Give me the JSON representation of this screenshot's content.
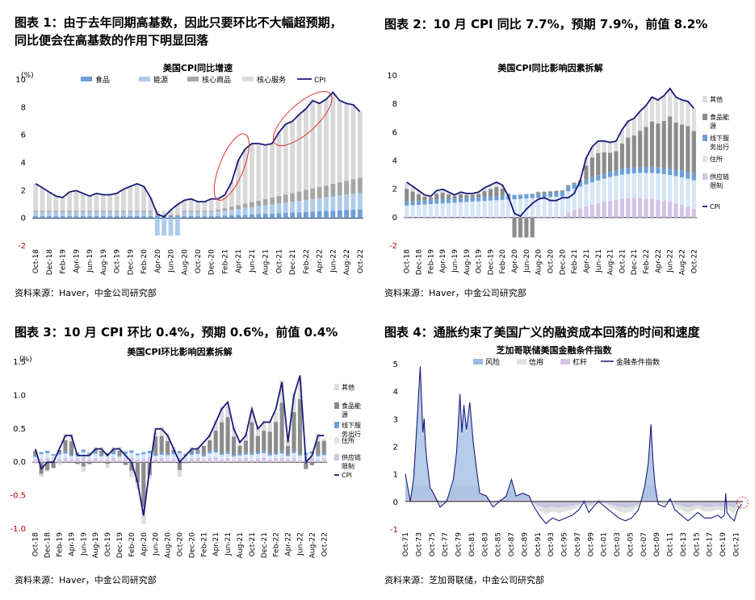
{
  "panels": [
    {
      "title_lines": [
        "图表 1：由于去年同期高基数，因此只要环比不大幅超预期，",
        "同比便会在高基数的作用下明显回落"
      ],
      "source": "资料来源：Haver，中金公司研究部"
    },
    {
      "title_lines": [
        "图表 2：10 月 CPI 同比 7.7%，预期 7.9%，前值 8.2%"
      ],
      "source": "资料来源：Haver，中金公司研究部"
    },
    {
      "title_lines": [
        "图表 3：10 月 CPI 环比 0.4%，预期 0.6%，前值 0.4%"
      ],
      "source": "资料来源：Haver，中金公司研究部"
    },
    {
      "title_lines": [
        "图表 4：通胀约束了美国广义的融资成本回落的时间和速度"
      ],
      "source": "资料来源：芝加哥联储，中金公司研究部"
    }
  ],
  "chart_data": [
    {
      "type": "bar",
      "title": "美国CPI同比增速",
      "ylabel": "(%)",
      "ylim": [
        -2,
        10
      ],
      "yticks": [
        -2,
        0,
        2,
        4,
        6,
        8,
        10
      ],
      "start": {
        "year": 2018,
        "month": 10
      },
      "n": 49,
      "xticks": [
        "Oct-18",
        "Dec-18",
        "Feb-19",
        "Apr-19",
        "Jun-19",
        "Aug-19",
        "Oct-19",
        "Dec-19",
        "Feb-20",
        "Apr-20",
        "Jun-20",
        "Aug-20",
        "Oct-20",
        "Dec-20",
        "Feb-21",
        "Apr-21",
        "Jun-21",
        "Aug-21",
        "Oct-21",
        "Dec-21",
        "Feb-22",
        "Apr-22",
        "Jun-22",
        "Aug-22",
        "Oct-22"
      ],
      "line_name": "CPI",
      "line": [
        2.5,
        2.2,
        1.9,
        1.6,
        1.5,
        1.9,
        2.0,
        1.8,
        1.6,
        1.8,
        1.7,
        1.7,
        1.8,
        2.1,
        2.3,
        2.5,
        2.3,
        1.5,
        0.3,
        0.1,
        0.6,
        1.0,
        1.3,
        1.4,
        1.2,
        1.2,
        1.4,
        1.4,
        1.7,
        2.6,
        4.2,
        5.0,
        5.4,
        5.4,
        5.3,
        5.4,
        6.2,
        6.8,
        7.0,
        7.5,
        7.9,
        8.5,
        8.3,
        8.6,
        9.1,
        8.5,
        8.3,
        8.2,
        7.7
      ],
      "series": [
        {
          "name": "食品",
          "color": "#6f9fd6"
        },
        {
          "name": "能源",
          "color": "#aecbeb"
        },
        {
          "name": "核心商品",
          "color": "#a6a6a6"
        },
        {
          "name": "核心服务",
          "color": "#d9d9d9"
        }
      ],
      "annotations": [
        "red-ellipse Dec-20..Jun-21",
        "red-ellipse Nov-21..Jun-22"
      ]
    },
    {
      "type": "bar",
      "title": "美国CPI同比影响因素拆解",
      "ylim": [
        -2,
        10
      ],
      "yticks": [
        -2,
        0,
        2,
        4,
        6,
        8,
        10
      ],
      "start": {
        "year": 2018,
        "month": 10
      },
      "n": 49,
      "xticks": [
        "Oct-18",
        "Dec-18",
        "Feb-19",
        "Apr-19",
        "Jun-19",
        "Aug-19",
        "Oct-19",
        "Dec-19",
        "Feb-20",
        "Apr-20",
        "Jun-20",
        "Aug-20",
        "Oct-20",
        "Dec-20",
        "Feb-21",
        "Apr-21",
        "Jun-21",
        "Aug-21",
        "Oct-21",
        "Dec-21",
        "Feb-22",
        "Apr-22",
        "Jun-22",
        "Aug-22",
        "Oct-22"
      ],
      "line_name": "CPI",
      "line": [
        2.5,
        2.2,
        1.9,
        1.6,
        1.5,
        1.9,
        2.0,
        1.8,
        1.6,
        1.8,
        1.7,
        1.7,
        1.8,
        2.1,
        2.3,
        2.5,
        2.3,
        1.5,
        0.3,
        0.1,
        0.6,
        1.0,
        1.3,
        1.4,
        1.2,
        1.2,
        1.4,
        1.4,
        1.7,
        2.6,
        4.2,
        5.0,
        5.4,
        5.4,
        5.3,
        5.4,
        6.2,
        6.8,
        7.0,
        7.5,
        7.9,
        8.5,
        8.3,
        8.6,
        9.1,
        8.5,
        8.3,
        8.2,
        7.7
      ],
      "series": [
        {
          "name": "其他",
          "color": "#dddddd"
        },
        {
          "name": "食品能源",
          "color": "#8c8c8c"
        },
        {
          "name": "线下服务出行",
          "color": "#6f9fd6"
        },
        {
          "name": "住所",
          "color": "#d6e6f6"
        },
        {
          "name": "供应链限制",
          "color": "#d4c3e4"
        }
      ]
    },
    {
      "type": "bar",
      "title": "美国CPI环比影响因素拆解",
      "ylabel": "(%)",
      "ylim": [
        -1.0,
        1.5
      ],
      "yticks": [
        -1.0,
        -0.5,
        0.0,
        0.5,
        1.0,
        1.5
      ],
      "start": {
        "year": 2018,
        "month": 10
      },
      "n": 49,
      "xticks": [
        "Oct-18",
        "Dec-18",
        "Feb-19",
        "Apr-19",
        "Jun-19",
        "Aug-19",
        "Oct-19",
        "Dec-19",
        "Feb-20",
        "Apr-20",
        "Jun-20",
        "Aug-20",
        "Oct-20",
        "Dec-20",
        "Feb-21",
        "Apr-21",
        "Jun-21",
        "Aug-21",
        "Oct-21",
        "Dec-21",
        "Feb-22",
        "Apr-22",
        "Jun-22",
        "Aug-22",
        "Oct-22"
      ],
      "line_name": "CPI",
      "line": [
        0.2,
        -0.1,
        0.0,
        0.0,
        0.2,
        0.4,
        0.4,
        0.1,
        0.1,
        0.1,
        0.2,
        0.2,
        0.1,
        0.2,
        0.2,
        0.1,
        0.0,
        -0.3,
        -0.8,
        -0.1,
        0.5,
        0.5,
        0.4,
        0.2,
        0.0,
        0.1,
        0.2,
        0.2,
        0.3,
        0.4,
        0.6,
        0.8,
        0.9,
        0.5,
        0.3,
        0.4,
        0.8,
        0.5,
        0.6,
        0.6,
        0.8,
        1.2,
        0.3,
        1.0,
        1.3,
        0.0,
        0.1,
        0.4,
        0.4
      ],
      "series": [
        {
          "name": "其他",
          "color": "#dddddd"
        },
        {
          "name": "食品能源",
          "color": "#8c8c8c"
        },
        {
          "name": "线下服务出行",
          "color": "#6f9fd6"
        },
        {
          "name": "住所",
          "color": "#d6e6f6"
        },
        {
          "name": "供应链限制",
          "color": "#d4c3e4"
        }
      ]
    },
    {
      "type": "area",
      "title": "芝加哥联储美国金融条件指数",
      "ylim": [
        -1,
        5
      ],
      "yticks": [
        -1,
        0,
        1,
        2,
        3,
        4,
        5
      ],
      "xticks": [
        "Oct-71",
        "Oct-73",
        "Oct-75",
        "Oct-77",
        "Oct-79",
        "Oct-81",
        "Oct-83",
        "Oct-85",
        "Oct-87",
        "Oct-89",
        "Oct-91",
        "Oct-93",
        "Oct-95",
        "Oct-97",
        "Oct-99",
        "Oct-01",
        "Oct-03",
        "Oct-05",
        "Oct-07",
        "Oct-09",
        "Oct-11",
        "Oct-13",
        "Oct-15",
        "Oct-17",
        "Oct-19",
        "Oct-21"
      ],
      "series": [
        {
          "name": "风险",
          "color": "#9dbbe3"
        },
        {
          "name": "信用",
          "color": "#e0e0e0"
        },
        {
          "name": "杠杆",
          "color": "#d4c3e4"
        },
        {
          "name": "金融条件指数",
          "color": "#1a1a7a"
        }
      ],
      "x": [
        1971.75,
        1972.5,
        1973.0,
        1973.5,
        1974.0,
        1974.4,
        1974.6,
        1974.8,
        1975.0,
        1975.5,
        1976.0,
        1977.0,
        1978.0,
        1979.0,
        1979.5,
        1980.0,
        1980.3,
        1980.6,
        1981.0,
        1981.5,
        1982.0,
        1982.5,
        1983.0,
        1984.0,
        1985.0,
        1986.0,
        1987.0,
        1987.8,
        1988.5,
        1989.5,
        1990.5,
        1991.0,
        1992.0,
        1993.0,
        1994.0,
        1995.0,
        1996.0,
        1997.0,
        1998.0,
        1998.8,
        1999.5,
        2000.5,
        2001.0,
        2002.0,
        2003.0,
        2004.0,
        2005.0,
        2006.0,
        2007.0,
        2007.5,
        2008.0,
        2008.5,
        2008.9,
        2009.2,
        2009.5,
        2010.0,
        2011.0,
        2011.8,
        2012.5,
        2013.5,
        2014.5,
        2015.5,
        2016.0,
        2017.0,
        2018.0,
        2019.0,
        2019.5,
        2020.0,
        2020.2,
        2020.4,
        2021.0,
        2021.5,
        2022.0,
        2022.6
      ],
      "index": [
        1.0,
        0.0,
        0.8,
        2.8,
        4.9,
        2.5,
        3.0,
        2.0,
        1.5,
        0.5,
        0.3,
        -0.2,
        0.0,
        0.8,
        1.8,
        3.9,
        2.5,
        3.5,
        2.6,
        3.6,
        2.2,
        1.2,
        0.3,
        0.2,
        -0.2,
        0.0,
        0.2,
        0.8,
        0.2,
        0.3,
        0.2,
        -0.1,
        -0.5,
        -0.8,
        -0.6,
        -0.7,
        -0.6,
        -0.5,
        -0.3,
        0.0,
        -0.4,
        -0.1,
        0.0,
        -0.2,
        -0.4,
        -0.6,
        -0.7,
        -0.6,
        -0.3,
        0.1,
        0.6,
        1.4,
        2.8,
        1.5,
        0.6,
        -0.1,
        -0.2,
        0.1,
        -0.3,
        -0.5,
        -0.7,
        -0.5,
        -0.4,
        -0.6,
        -0.6,
        -0.5,
        -0.6,
        -0.5,
        0.3,
        -0.4,
        -0.6,
        -0.7,
        -0.3,
        -0.1
      ]
    }
  ]
}
